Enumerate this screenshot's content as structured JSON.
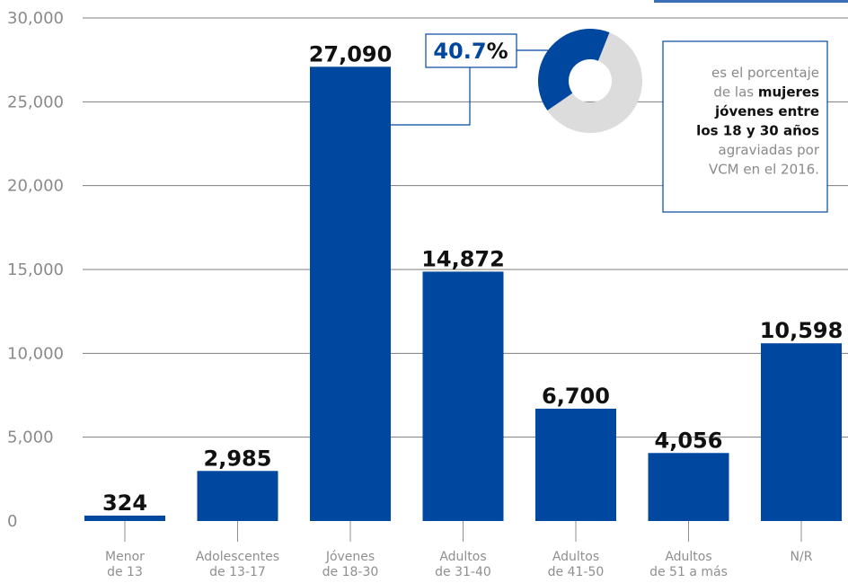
{
  "chart_data": {
    "type": "bar",
    "categories": [
      [
        "Menor",
        "de 13"
      ],
      [
        "Adolescentes",
        "de 13-17"
      ],
      [
        "Jóvenes",
        "de 18-30"
      ],
      [
        "Adultos",
        "de 31-40"
      ],
      [
        "Adultos",
        "de 41-50"
      ],
      [
        "Adultos",
        "de 51 a más"
      ],
      [
        "N/R"
      ]
    ],
    "values": [
      324,
      2985,
      27090,
      14872,
      6700,
      4056,
      10598
    ],
    "value_labels": [
      "324",
      "2,985",
      "27,090",
      "14,872",
      "6,700",
      "4,056",
      "10,598"
    ],
    "ylim": [
      0,
      30000
    ],
    "yticks": [
      0,
      5000,
      10000,
      15000,
      20000,
      25000,
      30000
    ],
    "ytick_labels": [
      "0",
      "5,000",
      "10,000",
      "15,000",
      "20,000",
      "25,000",
      "30,000"
    ],
    "grid": true,
    "bar_color": "#0047a0",
    "xlabel": "",
    "ylabel": "",
    "title": ""
  },
  "callout": {
    "percent_label": "40.7%",
    "percent_value": 40.7,
    "donut_colors": {
      "highlight": "#0047a0",
      "rest": "#dcdcdc"
    },
    "text_lines": [
      [
        {
          "t": "es el porcentaje",
          "b": false
        }
      ],
      [
        {
          "t": "de las ",
          "b": false
        },
        {
          "t": "mujeres",
          "b": true
        }
      ],
      [
        {
          "t": "jóvenes entre",
          "b": true
        }
      ],
      [
        {
          "t": "los 18 y 30 años",
          "b": true
        }
      ],
      [
        {
          "t": "agraviadas por",
          "b": false
        }
      ],
      [
        {
          "t": "VCM en el 2016.",
          "b": false
        }
      ]
    ]
  }
}
